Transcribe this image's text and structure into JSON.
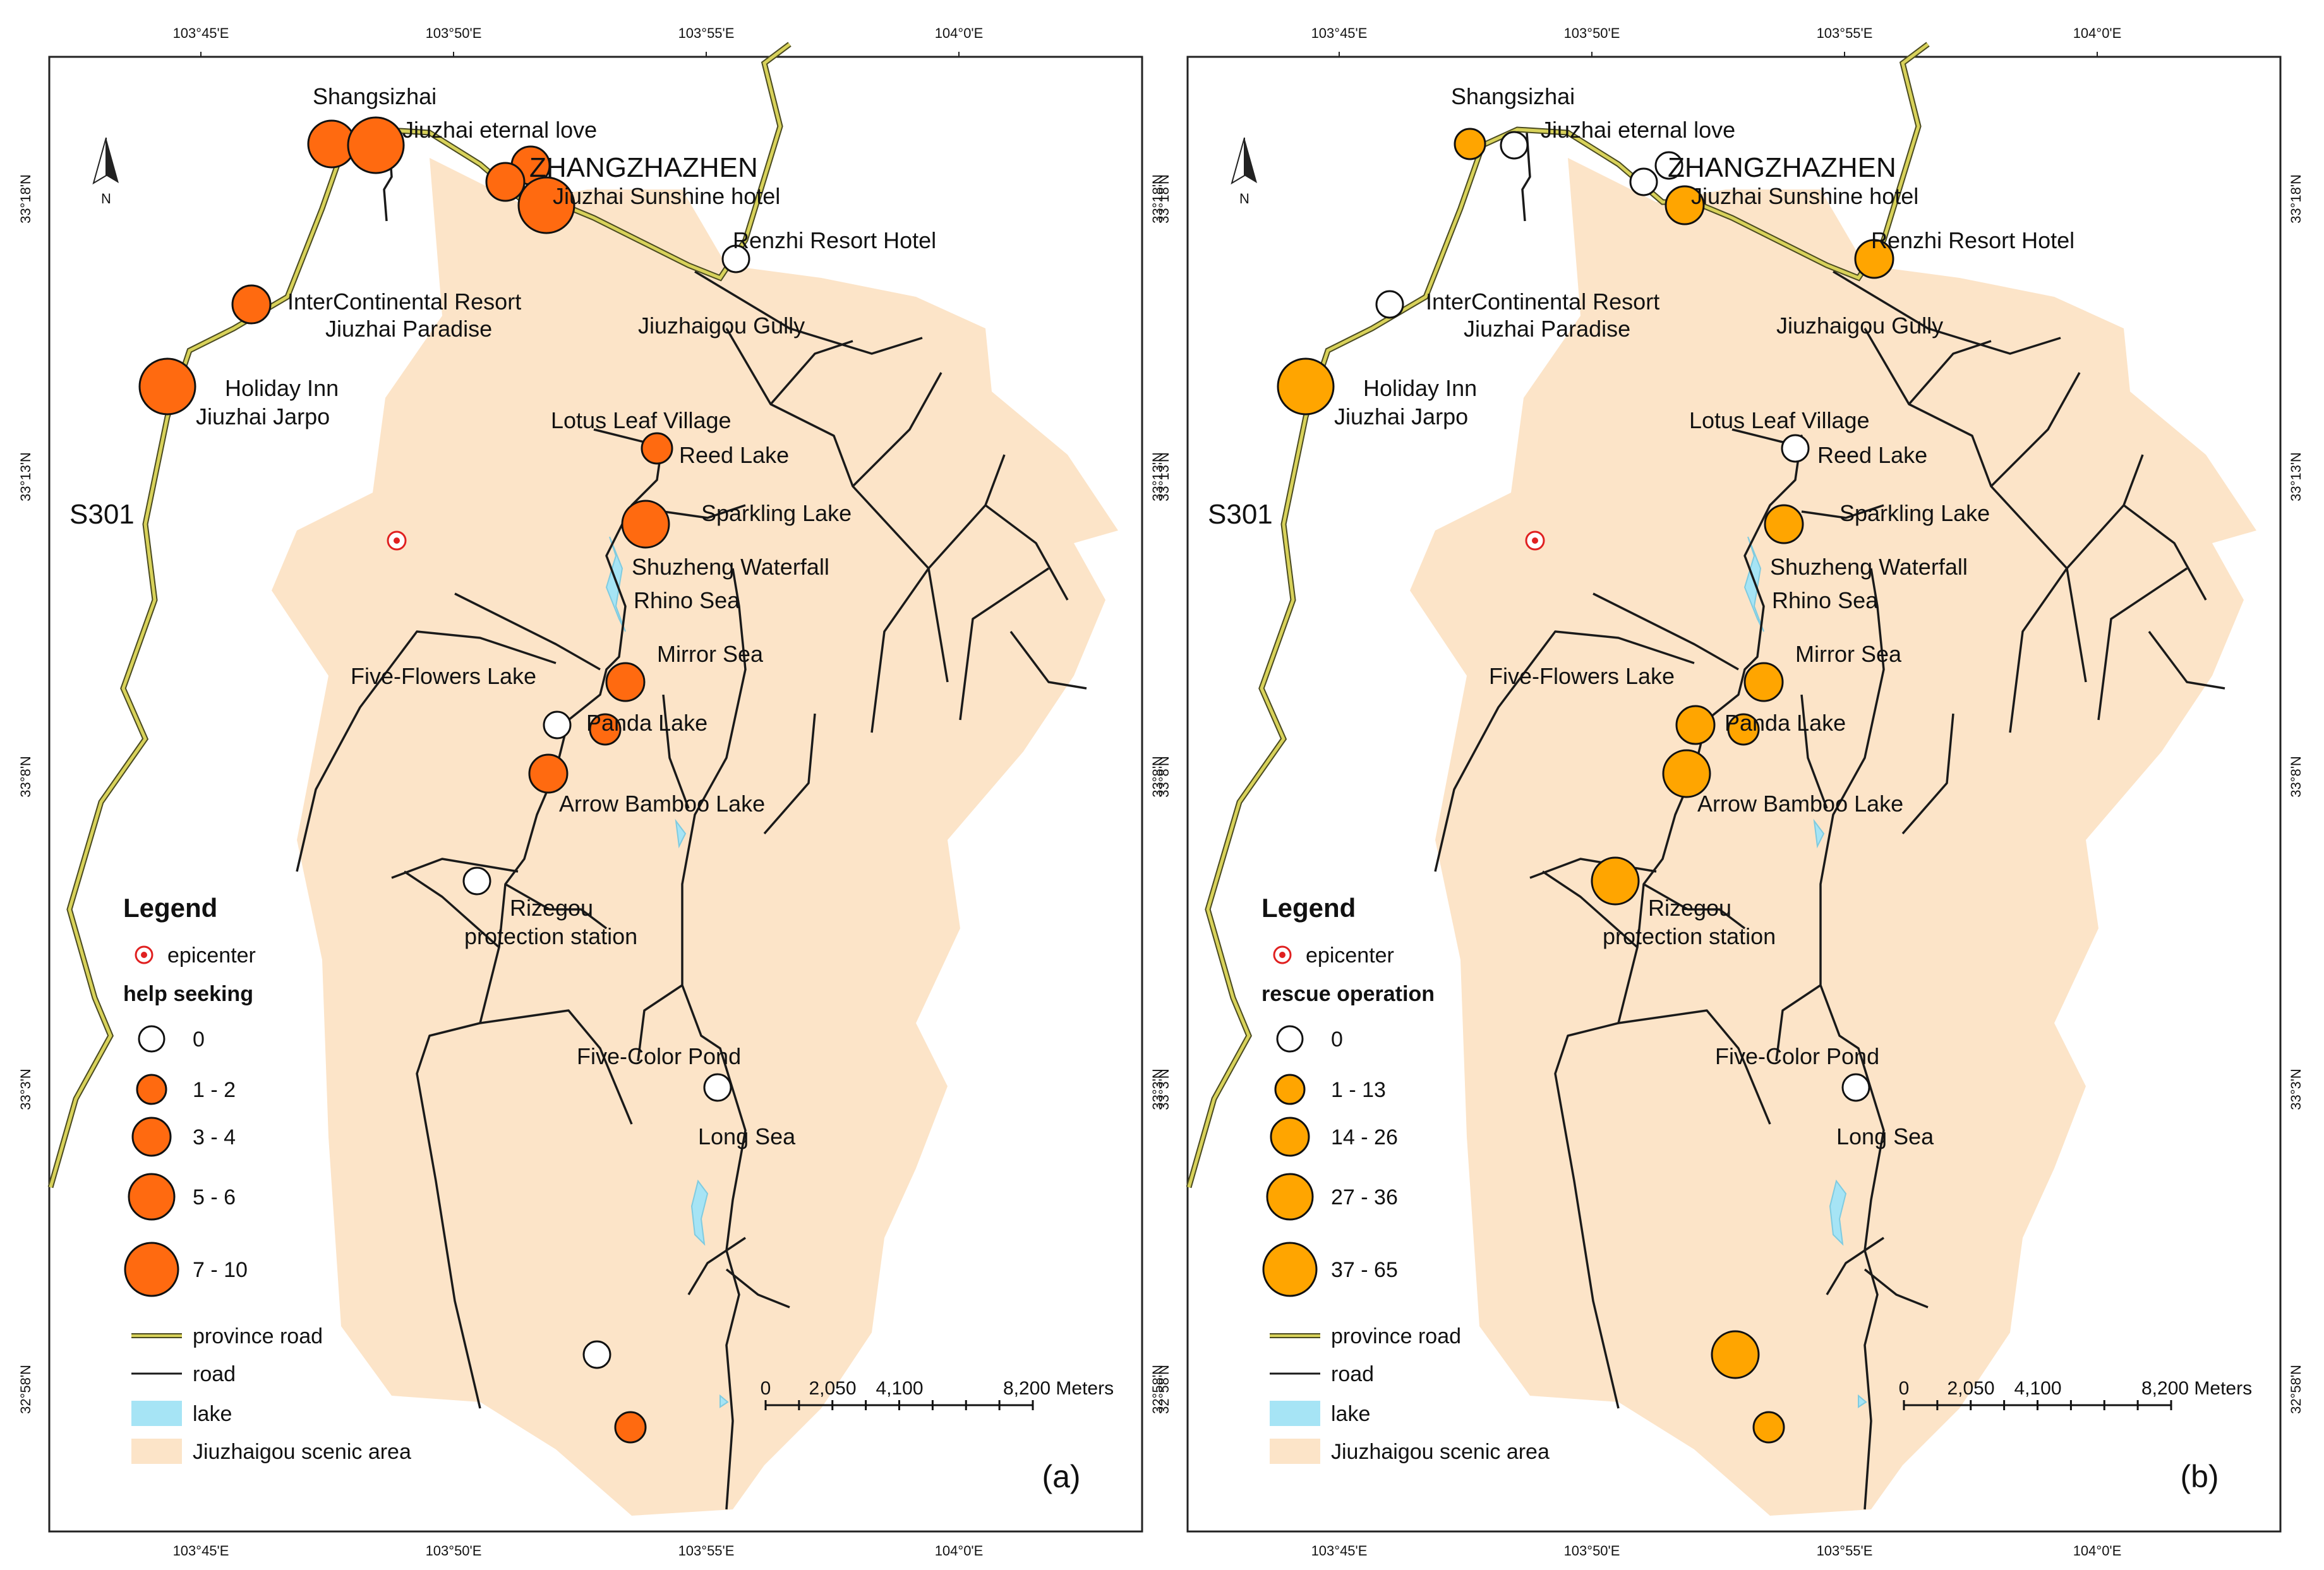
{
  "panels": [
    {
      "id": "a",
      "panel_label": "(a)",
      "legend_title": "Legend",
      "epicenter_label": "epicenter",
      "legend_variable": "help seeking",
      "classes": [
        "0",
        "1 - 2",
        "3 - 4",
        "5 - 6",
        "7 - 10"
      ],
      "marker_color": "#FF6A10",
      "road_label_1": "province road",
      "road_label_2": "road",
      "lake_label": "lake",
      "area_label": "Jiuzhaigou scenic area",
      "scale_labels": [
        "0",
        "2,050",
        "4,100",
        "8,200 Meters"
      ],
      "site_classes": [
        3,
        4,
        2,
        2,
        4,
        0,
        2,
        4,
        1,
        3,
        2,
        0,
        2,
        0,
        0,
        1,
        0,
        1
      ]
    },
    {
      "id": "b",
      "panel_label": "(b)",
      "legend_title": "Legend",
      "epicenter_label": "epicenter",
      "legend_variable": "rescue operation",
      "classes": [
        "0",
        "1 - 13",
        "14 - 26",
        "27 - 36",
        "37 - 65"
      ],
      "marker_color": "#FFA500",
      "road_label_1": "province road",
      "road_label_2": "road",
      "lake_label": "lake",
      "area_label": "Jiuzhaigou scenic area",
      "scale_labels": [
        "0",
        "2,050",
        "4,100",
        "8,200 Meters"
      ],
      "site_classes": [
        1,
        0,
        0,
        0,
        2,
        2,
        0,
        4,
        0,
        2,
        2,
        2,
        3,
        3,
        0,
        1,
        3,
        1
      ]
    }
  ],
  "site_names": [
    "Shangsizhai",
    "Jiuzhai eternal love",
    "ZHANGZHAZHEN",
    "Jiuzhai Sunshine hotel",
    "Renzhi Resort Hotel",
    "InterContinental Resort",
    "Jiuzhai Paradise",
    "Jiuzhaigou Gully",
    "Holiday Inn",
    "Jiuzhai Jarpo",
    "Lotus Leaf Village",
    "Reed Lake",
    "Sparkling Lake",
    "Shuzheng Waterfall",
    "Rhino Sea",
    "Mirror Sea",
    "Five-Flowers Lake",
    "Panda Lake",
    "Arrow Bamboo Lake",
    "Rizegou",
    "protection station",
    "Five-Color Pond",
    "Long Sea"
  ],
  "road_name": "S301",
  "lon_ticks": [
    "103°45'E",
    "103°50'E",
    "103°55'E",
    "104°0'E"
  ],
  "lat_ticks": [
    "33°18'N",
    "33°13'N",
    "33°8'N",
    "33°3'N",
    "32°58'N"
  ],
  "colors": {
    "scenic_area": "#FCE4C8",
    "lake": "#A6E4F5",
    "province_road": "#D8D25A",
    "road": "#1a1a1a",
    "epicenter": "#E02020"
  }
}
